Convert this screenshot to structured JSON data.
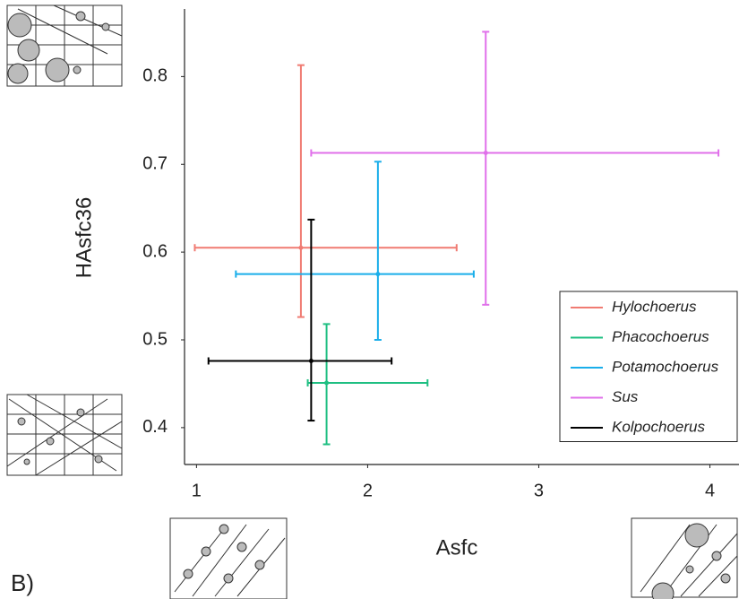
{
  "chart_data": {
    "type": "scatter",
    "x_label": "Asfc",
    "y_label": "HAsfc36",
    "panel_label": "B)",
    "xlim": [
      0.93,
      4.17
    ],
    "ylim": [
      0.358,
      0.877
    ],
    "xticks": [
      1,
      2,
      3,
      4
    ],
    "yticks": [
      0.4,
      0.5,
      0.6,
      0.7,
      0.8
    ],
    "grid": false,
    "legend": "lower right",
    "series": [
      {
        "name": "Hylochoerus",
        "color": "#f07b72",
        "x": 1.61,
        "y": 0.605,
        "x_low": 0.99,
        "x_high": 2.52,
        "y_low": 0.526,
        "y_high": 0.813
      },
      {
        "name": "Phacochoerus",
        "color": "#1fbf82",
        "x": 1.76,
        "y": 0.451,
        "x_low": 1.65,
        "x_high": 2.35,
        "y_low": 0.381,
        "y_high": 0.518
      },
      {
        "name": "Potamochoerus",
        "color": "#1aaeea",
        "x": 2.06,
        "y": 0.575,
        "x_low": 1.23,
        "x_high": 2.62,
        "y_low": 0.5,
        "y_high": 0.703
      },
      {
        "name": "Sus",
        "color": "#e070ea",
        "x": 2.69,
        "y": 0.713,
        "x_low": 1.67,
        "x_high": 4.05,
        "y_low": 0.54,
        "y_high": 0.851
      },
      {
        "name": "Kolpochoerus",
        "color": "#000000",
        "x": 1.67,
        "y": 0.476,
        "x_low": 1.07,
        "x_high": 2.14,
        "y_low": 0.408,
        "y_high": 0.637
      }
    ]
  }
}
